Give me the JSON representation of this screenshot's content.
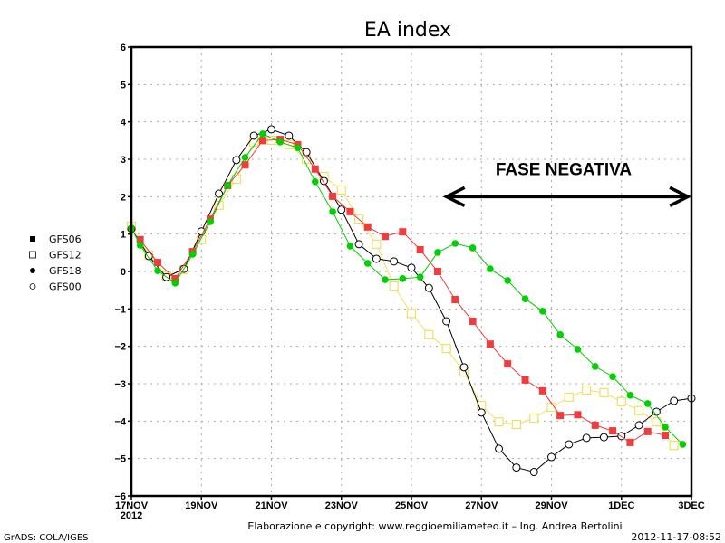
{
  "chart_data": {
    "type": "line",
    "title": "EA index",
    "xlabel": "",
    "ylabel": "",
    "ylim": [
      -6,
      6
    ],
    "yticks": [
      "-6",
      "-5",
      "-4",
      "-3",
      "-2",
      "-1",
      "0",
      "1",
      "2",
      "3",
      "4",
      "5",
      "6"
    ],
    "xlim_days": [
      0,
      16
    ],
    "xticks": [
      {
        "day": 0,
        "label": "17NOV",
        "sub": "2012"
      },
      {
        "day": 2,
        "label": "19NOV"
      },
      {
        "day": 4,
        "label": "21NOV"
      },
      {
        "day": 6,
        "label": "23NOV"
      },
      {
        "day": 8,
        "label": "25NOV"
      },
      {
        "day": 10,
        "label": "27NOV"
      },
      {
        "day": 12,
        "label": "29NOV"
      },
      {
        "day": 14,
        "label": "1DEC"
      },
      {
        "day": 16,
        "label": "3DEC"
      }
    ],
    "grid": true,
    "legend_position": "left",
    "series": [
      {
        "name": "GFS06",
        "marker": "filled-square",
        "color": "#f03c3c",
        "points": [
          [
            0.25,
            0.85
          ],
          [
            0.75,
            0.24
          ],
          [
            1.25,
            -0.19
          ],
          [
            1.75,
            0.53
          ],
          [
            2.25,
            1.4
          ],
          [
            2.75,
            2.3
          ],
          [
            3.25,
            2.85
          ],
          [
            3.75,
            3.5
          ],
          [
            4.25,
            3.53
          ],
          [
            4.75,
            3.39
          ],
          [
            5.25,
            2.74
          ],
          [
            5.75,
            2.01
          ],
          [
            6.25,
            1.6
          ],
          [
            6.75,
            1.19
          ],
          [
            7.25,
            0.94
          ],
          [
            7.75,
            1.06
          ],
          [
            8.25,
            0.58
          ],
          [
            8.75,
            0.0
          ],
          [
            9.25,
            -0.75
          ],
          [
            9.75,
            -1.33
          ],
          [
            10.25,
            -1.94
          ],
          [
            10.75,
            -2.47
          ],
          [
            11.25,
            -2.9
          ],
          [
            11.75,
            -3.19
          ],
          [
            12.25,
            -3.85
          ],
          [
            12.75,
            -3.83
          ],
          [
            13.25,
            -4.11
          ],
          [
            13.75,
            -4.26
          ],
          [
            14.25,
            -4.57
          ],
          [
            14.75,
            -4.28
          ],
          [
            15.25,
            -4.38
          ]
        ]
      },
      {
        "name": "GFS12",
        "marker": "open-square",
        "color": "#f0e060",
        "points": [
          [
            0,
            1.21
          ],
          [
            0.5,
            0.44
          ],
          [
            1.0,
            -0.12
          ],
          [
            1.5,
            0.05
          ],
          [
            2.0,
            0.85
          ],
          [
            2.5,
            1.77
          ],
          [
            3.0,
            2.47
          ],
          [
            3.5,
            3.46
          ],
          [
            4.0,
            3.51
          ],
          [
            4.5,
            3.39
          ],
          [
            5.0,
            3.0
          ],
          [
            5.5,
            2.54
          ],
          [
            6.0,
            2.18
          ],
          [
            6.5,
            1.4
          ],
          [
            7.0,
            0.73
          ],
          [
            7.5,
            -0.39
          ],
          [
            8.0,
            -1.12
          ],
          [
            8.5,
            -1.69
          ],
          [
            9.0,
            -2.06
          ],
          [
            9.5,
            -2.69
          ],
          [
            10.0,
            -3.58
          ],
          [
            10.5,
            -4.02
          ],
          [
            11.0,
            -4.09
          ],
          [
            11.5,
            -3.92
          ],
          [
            12.0,
            -3.63
          ],
          [
            12.5,
            -3.36
          ],
          [
            13.0,
            -3.17
          ],
          [
            13.5,
            -3.24
          ],
          [
            14.0,
            -3.48
          ],
          [
            14.5,
            -3.72
          ],
          [
            15.0,
            -4.02
          ],
          [
            15.5,
            -4.65
          ]
        ]
      },
      {
        "name": "GFS18",
        "marker": "filled-circle",
        "color": "#00d000",
        "points": [
          [
            0,
            1.16
          ],
          [
            0.25,
            0.7
          ],
          [
            0.75,
            0.02
          ],
          [
            1.25,
            -0.31
          ],
          [
            1.75,
            0.46
          ],
          [
            2.25,
            1.33
          ],
          [
            2.75,
            2.3
          ],
          [
            3.25,
            3.05
          ],
          [
            3.75,
            3.68
          ],
          [
            4.25,
            3.46
          ],
          [
            4.75,
            3.31
          ],
          [
            5.25,
            2.4
          ],
          [
            5.75,
            1.6
          ],
          [
            6.25,
            0.68
          ],
          [
            6.75,
            0.22
          ],
          [
            7.25,
            -0.22
          ],
          [
            7.75,
            -0.19
          ],
          [
            8.25,
            -0.15
          ],
          [
            8.75,
            0.51
          ],
          [
            9.25,
            0.75
          ],
          [
            9.75,
            0.63
          ],
          [
            10.25,
            0.07
          ],
          [
            10.75,
            -0.24
          ],
          [
            11.25,
            -0.73
          ],
          [
            11.75,
            -1.06
          ],
          [
            12.25,
            -1.69
          ],
          [
            12.75,
            -2.08
          ],
          [
            13.25,
            -2.54
          ],
          [
            13.75,
            -2.81
          ],
          [
            14.25,
            -3.31
          ],
          [
            14.75,
            -3.53
          ],
          [
            15.25,
            -4.16
          ],
          [
            15.75,
            -4.62
          ]
        ]
      },
      {
        "name": "GFS00",
        "marker": "open-circle",
        "color": "#000000",
        "points": [
          [
            0,
            1.14
          ],
          [
            0.5,
            0.41
          ],
          [
            1.0,
            -0.15
          ],
          [
            1.5,
            0.07
          ],
          [
            2.0,
            1.07
          ],
          [
            2.5,
            2.08
          ],
          [
            3.0,
            2.98
          ],
          [
            3.5,
            3.63
          ],
          [
            4.0,
            3.8
          ],
          [
            4.5,
            3.63
          ],
          [
            5.0,
            3.19
          ],
          [
            5.5,
            2.42
          ],
          [
            6.0,
            1.65
          ],
          [
            6.5,
            0.73
          ],
          [
            7.0,
            0.34
          ],
          [
            7.5,
            0.27
          ],
          [
            8.0,
            0.1
          ],
          [
            8.5,
            -0.44
          ],
          [
            9.0,
            -1.33
          ],
          [
            9.5,
            -2.56
          ],
          [
            10.0,
            -3.77
          ],
          [
            10.5,
            -4.74
          ],
          [
            11.0,
            -5.24
          ],
          [
            11.5,
            -5.36
          ],
          [
            12.0,
            -4.96
          ],
          [
            12.5,
            -4.62
          ],
          [
            13.0,
            -4.45
          ],
          [
            13.5,
            -4.43
          ],
          [
            14.0,
            -4.4
          ],
          [
            14.5,
            -4.11
          ],
          [
            15.0,
            -3.75
          ],
          [
            15.5,
            -3.46
          ],
          [
            16.0,
            -3.39
          ]
        ]
      }
    ],
    "annotation": {
      "text": "FASE NEGATIVA",
      "arrow": "double-headed",
      "from_day": 9.0,
      "to_day": 15.9,
      "y_value": 2.0
    }
  },
  "footer": {
    "credit": "Elaborazione e copyright: www.reggioemiliameteo.it – Ing. Andrea Bertolini",
    "timestamp": "2012-11-17-08:52",
    "software": "GrADS: COLA/IGES"
  }
}
